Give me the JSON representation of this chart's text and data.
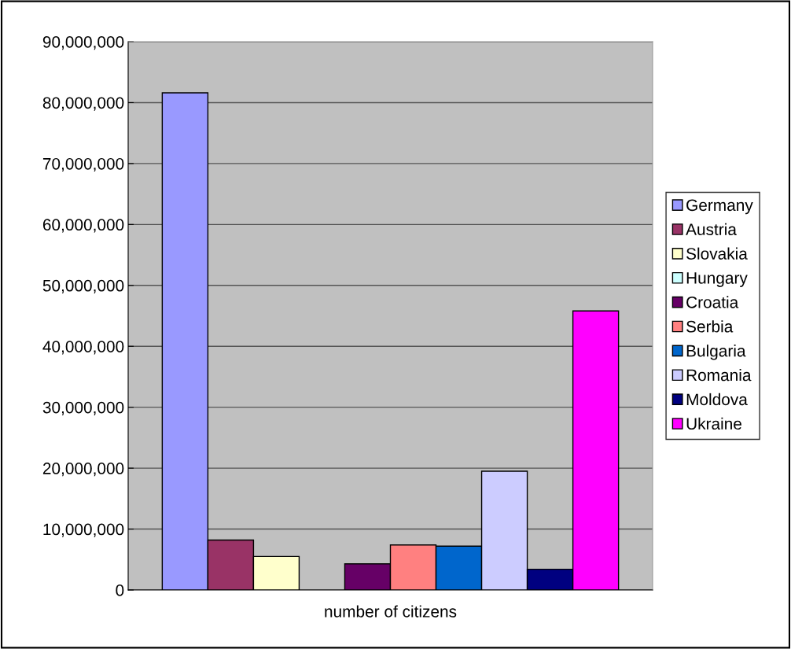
{
  "chart_data": {
    "type": "bar",
    "categories": [
      "number of citizens"
    ],
    "series": [
      {
        "name": "Germany",
        "color": "#9999ff",
        "values": [
          81600000
        ]
      },
      {
        "name": "Austria",
        "color": "#993366",
        "values": [
          8200000
        ]
      },
      {
        "name": "Slovakia",
        "color": "#ffffcc",
        "values": [
          5500000
        ]
      },
      {
        "name": "Hungary",
        "color": "#ccffff",
        "values": [
          null
        ]
      },
      {
        "name": "Croatia",
        "color": "#660066",
        "values": [
          4300000
        ]
      },
      {
        "name": "Serbia",
        "color": "#ff8080",
        "values": [
          7400000
        ]
      },
      {
        "name": "Bulgaria",
        "color": "#0066cc",
        "values": [
          7200000
        ]
      },
      {
        "name": "Romania",
        "color": "#ccccff",
        "values": [
          19500000
        ]
      },
      {
        "name": "Moldova",
        "color": "#000080",
        "values": [
          3400000
        ]
      },
      {
        "name": "Ukraine",
        "color": "#ff00ff",
        "values": [
          45800000
        ]
      }
    ],
    "ylim": [
      0,
      90000000
    ],
    "yticks": [
      {
        "value": 0,
        "label": "0"
      },
      {
        "value": 10000000,
        "label": "10,000,000"
      },
      {
        "value": 20000000,
        "label": "20,000,000"
      },
      {
        "value": 30000000,
        "label": "30,000,000"
      },
      {
        "value": 40000000,
        "label": "40,000,000"
      },
      {
        "value": 50000000,
        "label": "50,000,000"
      },
      {
        "value": 60000000,
        "label": "60,000,000"
      },
      {
        "value": 70000000,
        "label": "70,000,000"
      },
      {
        "value": 80000000,
        "label": "80,000,000"
      },
      {
        "value": 90000000,
        "label": "90,000,000"
      }
    ],
    "grid": "y",
    "legend": "right"
  }
}
